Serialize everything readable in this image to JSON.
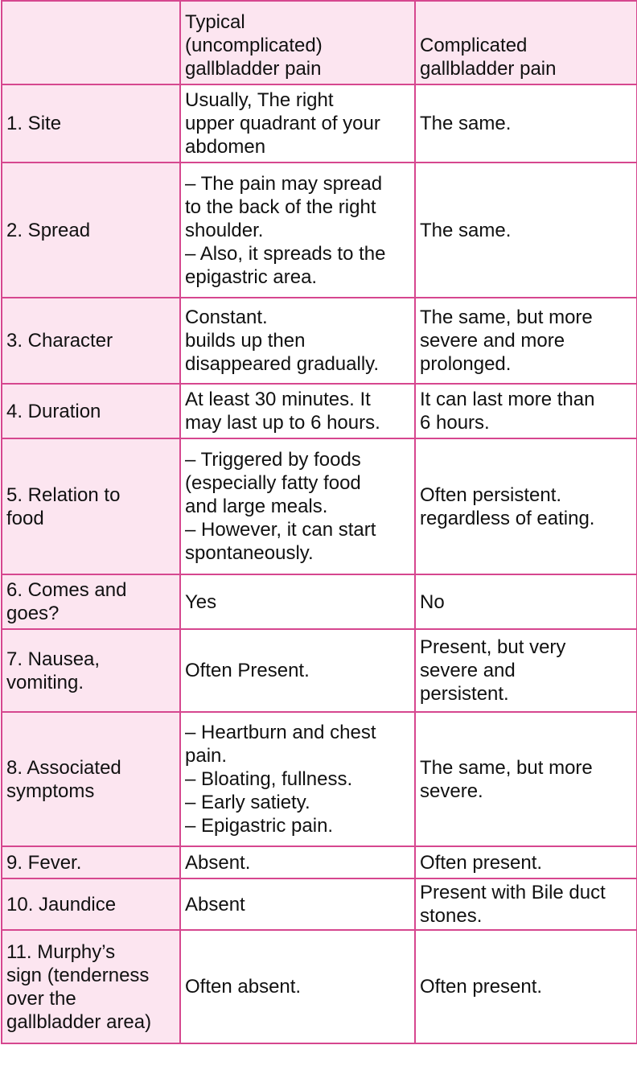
{
  "table": {
    "header": {
      "col1": "",
      "col2": [
        "Typical",
        "(uncomplicated)",
        "gallbladder pain"
      ],
      "col3": [
        "Complicated",
        "gallbladder pain"
      ]
    },
    "rows": [
      {
        "label": [
          "1. Site"
        ],
        "typical": [
          "Usually, The right",
          "upper quadrant of your",
          "abdomen"
        ],
        "complicated": [
          "The same."
        ]
      },
      {
        "label": [
          "2. Spread"
        ],
        "typical": [
          "– The pain may spread",
          "to the back of the right",
          "shoulder.",
          "– Also, it spreads to the",
          "epigastric area."
        ],
        "complicated": [
          "The same."
        ]
      },
      {
        "label": [
          "3. Character"
        ],
        "typical": [
          "Constant.",
          "builds up then",
          "disappeared gradually."
        ],
        "complicated": [
          "The same, but more",
          "severe and more",
          "prolonged."
        ]
      },
      {
        "label": [
          "4. Duration"
        ],
        "typical": [
          "At least 30 minutes. It",
          "may last up to 6 hours."
        ],
        "complicated": [
          "It can last more than",
          "6 hours."
        ]
      },
      {
        "label": [
          "5. Relation to",
          "food"
        ],
        "typical": [
          "– Triggered by foods",
          "(especially fatty food",
          "and large meals.",
          "– However, it can start",
          "spontaneously."
        ],
        "complicated": [
          "Often persistent.",
          "regardless of eating."
        ]
      },
      {
        "label": [
          "6. Comes and",
          "goes?"
        ],
        "typical": [
          "Yes"
        ],
        "complicated": [
          "No"
        ]
      },
      {
        "label": [
          "7. Nausea,",
          "vomiting."
        ],
        "typical": [
          "Often Present."
        ],
        "complicated": [
          "Present, but very",
          "severe and",
          "persistent."
        ]
      },
      {
        "label": [
          "8. Associated",
          "symptoms"
        ],
        "typical": [
          "– Heartburn and chest",
          "pain.",
          "– Bloating, fullness.",
          "– Early satiety.",
          "– Epigastric pain."
        ],
        "complicated": [
          "The same, but more",
          "severe."
        ]
      },
      {
        "label": [
          "9. Fever."
        ],
        "typical": [
          "Absent."
        ],
        "complicated": [
          "Often present."
        ]
      },
      {
        "label": [
          "10. Jaundice"
        ],
        "typical": [
          "Absent"
        ],
        "complicated": [
          "Present with Bile duct",
          "stones."
        ]
      },
      {
        "label": [
          "11. Murphy’s",
          "sign (tenderness",
          "over the",
          "gallbladder area)"
        ],
        "typical": [
          "Often absent."
        ],
        "complicated": [
          "Often present."
        ]
      }
    ]
  }
}
